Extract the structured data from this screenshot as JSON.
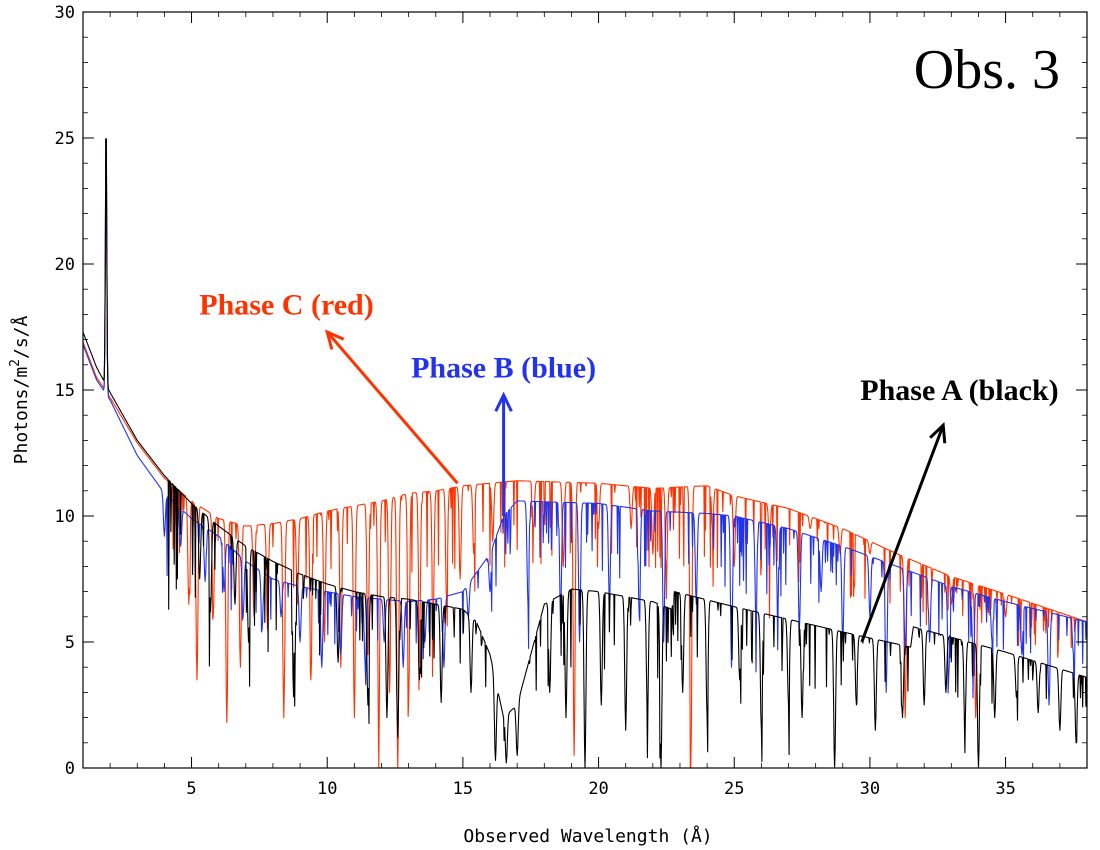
{
  "chart_data": {
    "type": "line",
    "title": "Obs. 3",
    "xlabel": "Observed Wavelength (Å)",
    "ylabel": "Photons/m²/s/Å",
    "ylabel_parts": {
      "prefix": "Photons/m",
      "sup": "2",
      "suffix": "/s/Å"
    },
    "xlim": [
      1,
      38
    ],
    "ylim": [
      0,
      30
    ],
    "xticks": [
      "5",
      "10",
      "15",
      "20",
      "25",
      "30",
      "35"
    ],
    "yticks": [
      "0",
      "5",
      "10",
      "15",
      "20",
      "25",
      "30"
    ],
    "grid": false,
    "colors": {
      "red": "#ff3300",
      "blue": "#2233ee",
      "black": "#000000"
    },
    "emission_line": {
      "x": 1.85,
      "peak": 25.8
    },
    "series": [
      {
        "name": "Phase A (black)",
        "label": "Phase A (black)",
        "color": "#000000",
        "continuum_points": [
          [
            1,
            17.3
          ],
          [
            1.5,
            15.9
          ],
          [
            2,
            14.9
          ],
          [
            3,
            13.0
          ],
          [
            4,
            11.6
          ],
          [
            5,
            10.5
          ],
          [
            6,
            9.6
          ],
          [
            7,
            8.8
          ],
          [
            8,
            8.2
          ],
          [
            9,
            7.7
          ],
          [
            10,
            7.3
          ],
          [
            11,
            7.0
          ],
          [
            12,
            6.8
          ],
          [
            13,
            6.7
          ],
          [
            14,
            6.5
          ],
          [
            15,
            6.3
          ],
          [
            15.5,
            5.8
          ],
          [
            16,
            4.5
          ],
          [
            16.5,
            2.0
          ],
          [
            17,
            2.5
          ],
          [
            17.5,
            4.5
          ],
          [
            18,
            6.5
          ],
          [
            19,
            7.1
          ],
          [
            20,
            7.0
          ],
          [
            22,
            6.6
          ],
          [
            22.7,
            6.3
          ],
          [
            22.8,
            7.0
          ],
          [
            25,
            6.4
          ],
          [
            27,
            5.9
          ],
          [
            29,
            5.4
          ],
          [
            31.5,
            4.8
          ],
          [
            31.6,
            5.6
          ],
          [
            35,
            4.6
          ],
          [
            38,
            3.6
          ]
        ],
        "absorption": [
          [
            5.3,
            7.5
          ],
          [
            5.7,
            6.2
          ],
          [
            6.6,
            6.5
          ],
          [
            7.1,
            5.0
          ],
          [
            8.8,
            4.0
          ],
          [
            10.4,
            4.2
          ],
          [
            11.5,
            2.5
          ],
          [
            12.2,
            2.0
          ],
          [
            12.6,
            1.2
          ],
          [
            13.4,
            3.5
          ],
          [
            14.2,
            2.6
          ],
          [
            15.3,
            3.0
          ],
          [
            16.2,
            0.3
          ],
          [
            16.6,
            0.2
          ],
          [
            17.0,
            0.5
          ],
          [
            18.2,
            3.0
          ],
          [
            18.8,
            2.0
          ],
          [
            19.5,
            0.0
          ],
          [
            20.1,
            2.5
          ],
          [
            21.0,
            1.5
          ],
          [
            21.8,
            2.0
          ],
          [
            22.3,
            0.0
          ],
          [
            23.1,
            3.0
          ],
          [
            24.0,
            2.0
          ],
          [
            25.2,
            3.5
          ],
          [
            26.0,
            1.5
          ],
          [
            27.0,
            2.5
          ],
          [
            27.5,
            2.0
          ],
          [
            28.7,
            0.0
          ],
          [
            29.5,
            2.5
          ],
          [
            30.2,
            1.5
          ],
          [
            31.2,
            2.0
          ],
          [
            32.0,
            2.5
          ],
          [
            32.8,
            3.0
          ],
          [
            33.5,
            1.5
          ],
          [
            34.0,
            0.0
          ],
          [
            34.6,
            2.0
          ],
          [
            35.4,
            2.8
          ],
          [
            36.2,
            2.2
          ],
          [
            37.0,
            1.5
          ],
          [
            37.6,
            1.0
          ]
        ]
      },
      {
        "name": "Phase B (blue)",
        "label": "Phase B (blue)",
        "color": "#2233ee",
        "continuum_points": [
          [
            1,
            16.8
          ],
          [
            1.5,
            15.4
          ],
          [
            2,
            14.6
          ],
          [
            3,
            12.4
          ],
          [
            4,
            10.9
          ],
          [
            5,
            9.9
          ],
          [
            6,
            9.2
          ],
          [
            7,
            8.2
          ],
          [
            8,
            7.5
          ],
          [
            9,
            7.2
          ],
          [
            10,
            7.0
          ],
          [
            11,
            6.8
          ],
          [
            12,
            6.7
          ],
          [
            13,
            6.6
          ],
          [
            14,
            6.7
          ],
          [
            15,
            7.0
          ],
          [
            16,
            8.5
          ],
          [
            16.5,
            10.0
          ],
          [
            17,
            10.6
          ],
          [
            20,
            10.5
          ],
          [
            22,
            10.2
          ],
          [
            24,
            10.1
          ],
          [
            25,
            10.0
          ],
          [
            27,
            9.5
          ],
          [
            29,
            8.8
          ],
          [
            31,
            8.0
          ],
          [
            33,
            7.2
          ],
          [
            35,
            6.6
          ],
          [
            38,
            5.8
          ]
        ],
        "absorption": [
          [
            4.0,
            9.2
          ],
          [
            4.6,
            8.8
          ],
          [
            5.5,
            7.4
          ],
          [
            6.2,
            7.0
          ],
          [
            6.9,
            6.0
          ],
          [
            7.6,
            5.5
          ],
          [
            8.3,
            6.0
          ],
          [
            9.0,
            5.0
          ],
          [
            9.8,
            4.0
          ],
          [
            10.5,
            4.5
          ],
          [
            11.4,
            4.0
          ],
          [
            12.1,
            5.0
          ],
          [
            12.8,
            4.0
          ],
          [
            13.6,
            5.0
          ],
          [
            14.3,
            4.0
          ],
          [
            15.2,
            6.0
          ],
          [
            16.0,
            7.0
          ],
          [
            17.4,
            6.5
          ],
          [
            18.6,
            6.0
          ],
          [
            19.3,
            5.0
          ],
          [
            20.4,
            6.5
          ],
          [
            21.5,
            6.0
          ],
          [
            22.4,
            5.0
          ],
          [
            23.6,
            6.5
          ],
          [
            24.9,
            4.0
          ],
          [
            25.8,
            6.0
          ],
          [
            26.6,
            6.5
          ],
          [
            27.4,
            5.5
          ],
          [
            28.2,
            7.0
          ],
          [
            29.0,
            5.0
          ],
          [
            30.0,
            6.0
          ],
          [
            30.6,
            3.0
          ],
          [
            31.3,
            4.5
          ],
          [
            32.2,
            5.0
          ],
          [
            32.9,
            3.5
          ],
          [
            33.8,
            4.5
          ],
          [
            34.5,
            5.0
          ],
          [
            35.6,
            4.5
          ],
          [
            36.6,
            2.5
          ],
          [
            37.5,
            4.5
          ]
        ]
      },
      {
        "name": "Phase C (red)",
        "label": "Phase C (red)",
        "color": "#ff3300",
        "continuum_points": [
          [
            1,
            16.9
          ],
          [
            1.5,
            15.5
          ],
          [
            2,
            14.7
          ],
          [
            3,
            12.9
          ],
          [
            4,
            11.5
          ],
          [
            5,
            10.6
          ],
          [
            6,
            9.9
          ],
          [
            7,
            9.6
          ],
          [
            8,
            9.7
          ],
          [
            9,
            9.9
          ],
          [
            10,
            10.2
          ],
          [
            11,
            10.4
          ],
          [
            12,
            10.6
          ],
          [
            13,
            10.9
          ],
          [
            14,
            11.0
          ],
          [
            15,
            11.2
          ],
          [
            16,
            11.3
          ],
          [
            17,
            11.4
          ],
          [
            20,
            11.3
          ],
          [
            22,
            11.1
          ],
          [
            24,
            11.2
          ],
          [
            25,
            10.8
          ],
          [
            27,
            10.3
          ],
          [
            29,
            9.5
          ],
          [
            31,
            8.5
          ],
          [
            33,
            7.6
          ],
          [
            35,
            6.9
          ],
          [
            38,
            5.8
          ]
        ],
        "absorption": [
          [
            4.9,
            6.5
          ],
          [
            5.2,
            3.5
          ],
          [
            5.8,
            6.0
          ],
          [
            6.3,
            1.8
          ],
          [
            6.8,
            4.0
          ],
          [
            7.3,
            6.0
          ],
          [
            7.8,
            5.5
          ],
          [
            8.4,
            2.0
          ],
          [
            8.9,
            6.5
          ],
          [
            9.4,
            3.5
          ],
          [
            9.9,
            5.0
          ],
          [
            10.5,
            4.0
          ],
          [
            11.0,
            2.0
          ],
          [
            11.5,
            4.5
          ],
          [
            11.9,
            1.0
          ],
          [
            12.3,
            3.0
          ],
          [
            12.6,
            0.0
          ],
          [
            13.0,
            2.5
          ],
          [
            13.4,
            5.0
          ],
          [
            13.9,
            5.5
          ],
          [
            14.4,
            6.5
          ],
          [
            14.9,
            7.5
          ],
          [
            15.4,
            8.5
          ],
          [
            16.1,
            9.0
          ],
          [
            17.6,
            9.5
          ],
          [
            18.7,
            8.0
          ],
          [
            19.1,
            0.5
          ],
          [
            20.0,
            9.5
          ],
          [
            21.2,
            9.5
          ],
          [
            22.0,
            8.5
          ],
          [
            22.5,
            7.5
          ],
          [
            23.4,
            0.0
          ],
          [
            24.2,
            9.5
          ],
          [
            25.0,
            8.0
          ],
          [
            26.3,
            9.0
          ],
          [
            27.8,
            9.5
          ],
          [
            28.9,
            8.5
          ],
          [
            30.0,
            8.5
          ],
          [
            31.3,
            2.0
          ],
          [
            33.0,
            6.5
          ],
          [
            33.9,
            2.0
          ],
          [
            35.0,
            6.0
          ]
        ]
      }
    ],
    "annotations": [
      {
        "text": "Phase C (red)",
        "color": "#ff3300",
        "arrow_from": [
          14.8,
          11.3
        ],
        "arrow_to": [
          10.0,
          17.3
        ],
        "text_at": [
          8.5,
          18.0
        ]
      },
      {
        "text": "Phase B (blue)",
        "color": "#2233ee",
        "arrow_from": [
          16.5,
          10.0
        ],
        "arrow_to": [
          16.5,
          14.8
        ],
        "text_at": [
          16.5,
          15.5
        ]
      },
      {
        "text": "Phase A (black)",
        "color": "#000000",
        "arrow_from": [
          29.7,
          5.0
        ],
        "arrow_to": [
          32.7,
          13.6
        ],
        "text_at": [
          33.3,
          14.6
        ]
      }
    ]
  }
}
